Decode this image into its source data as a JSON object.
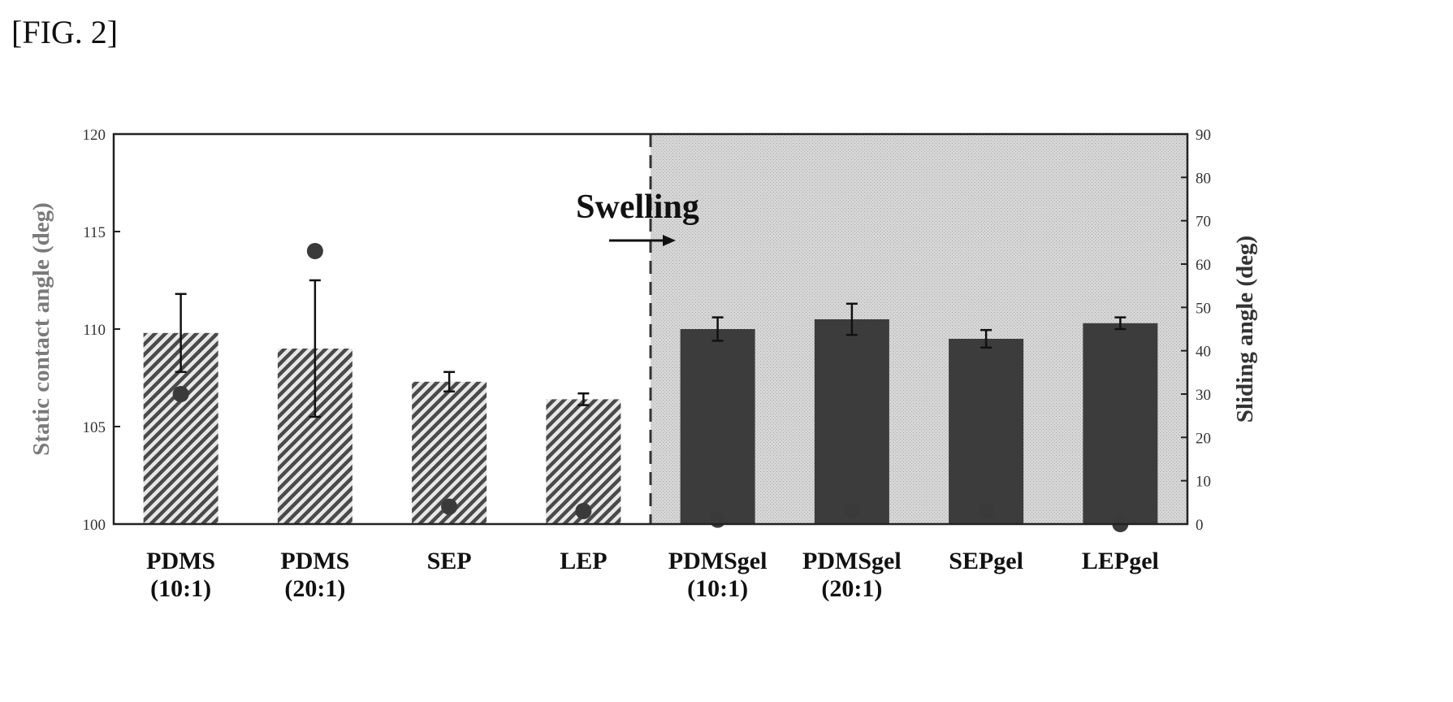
{
  "figure_label": "[FIG. 2]",
  "chart_data": {
    "type": "bar",
    "categories": [
      [
        "PDMS",
        "(10:1)"
      ],
      [
        "PDMS",
        "(20:1)"
      ],
      [
        "SEP"
      ],
      [
        "LEP"
      ],
      [
        "PDMSgel",
        "(10:1)"
      ],
      [
        "PDMSgel",
        "(20:1)"
      ],
      [
        "SEPgel"
      ],
      [
        "LEPgel"
      ]
    ],
    "bars": {
      "axis": "left",
      "values": [
        109.8,
        109.0,
        107.3,
        106.4,
        110.0,
        110.5,
        109.5,
        110.3
      ],
      "errors": [
        2.0,
        3.5,
        0.5,
        0.3,
        0.6,
        0.8,
        0.45,
        0.3
      ],
      "styles": [
        "hatched",
        "hatched",
        "hatched",
        "hatched",
        "solid",
        "solid",
        "solid",
        "solid"
      ]
    },
    "points": {
      "axis": "right",
      "values": [
        30,
        63,
        4,
        3,
        1,
        3,
        3,
        0
      ]
    },
    "y_left": {
      "label": "Static contact angle (deg)",
      "lim": [
        100,
        120
      ],
      "ticks": [
        100,
        105,
        110,
        115,
        120
      ]
    },
    "y_right": {
      "label": "Sliding angle (deg)",
      "lim": [
        0,
        90
      ],
      "ticks": [
        0,
        10,
        20,
        30,
        40,
        50,
        60,
        70,
        80,
        90
      ]
    },
    "annotation": "Swelling",
    "shaded_region_start_index": 4,
    "colors": {
      "bar": "#3c3c3c",
      "point": "#3a3a3a",
      "shade": "#d4d4d4",
      "divider": "#333333"
    }
  }
}
